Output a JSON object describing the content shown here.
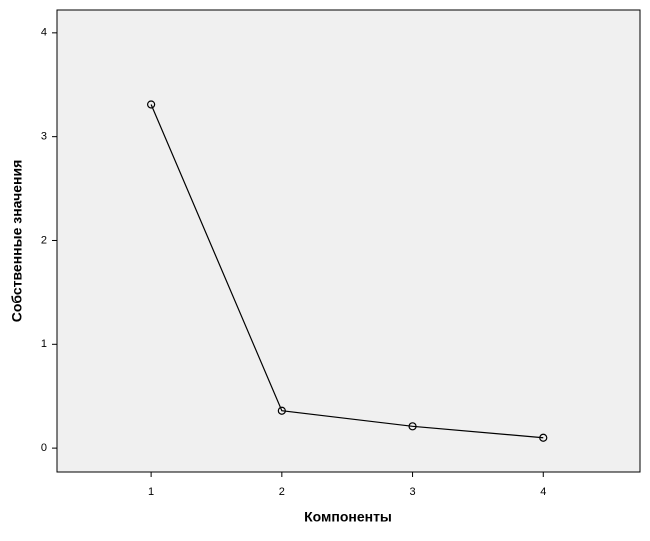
{
  "chart_data": {
    "type": "line",
    "x_label": "Компоненты",
    "y_label": "Собственные значения",
    "x": [
      1,
      2,
      3,
      4
    ],
    "series": [
      {
        "name": "Собственные значения",
        "color": "#000000",
        "values": [
          3.31,
          0.36,
          0.21,
          0.1
        ]
      }
    ],
    "xlim": [
      0.28,
      4.74
    ],
    "xticks": [
      1,
      2,
      3,
      4
    ],
    "ylim": [
      -0.23,
      4.22
    ],
    "yticks": [
      0,
      1,
      2,
      3,
      4
    ],
    "background": "#f0f0f0"
  }
}
